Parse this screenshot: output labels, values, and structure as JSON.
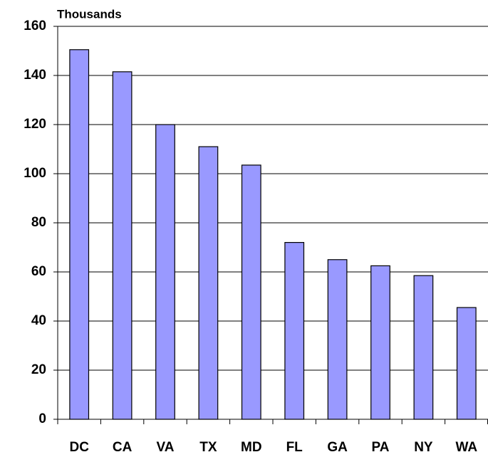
{
  "chart_data": {
    "type": "bar",
    "ylabel": "Thousands",
    "categories": [
      "DC",
      "CA",
      "VA",
      "TX",
      "MD",
      "FL",
      "GA",
      "PA",
      "NY",
      "WA"
    ],
    "values": [
      150.5,
      141.5,
      120,
      111,
      103.5,
      72,
      65,
      62.5,
      58.5,
      45.5
    ],
    "color": "#9999ff",
    "ylim": [
      0,
      160
    ],
    "yticks": [
      0,
      20,
      40,
      60,
      80,
      100,
      120,
      140,
      160
    ],
    "grid": true
  }
}
